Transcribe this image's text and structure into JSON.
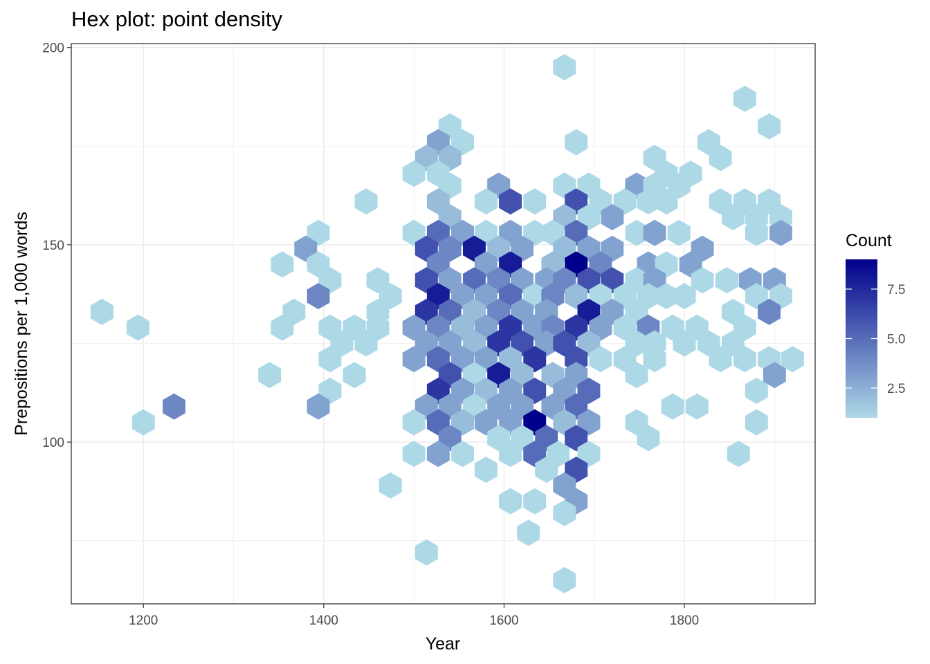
{
  "chart_data": {
    "type": "hexbin",
    "title": "Hex plot: point density",
    "xlabel": "Year",
    "ylabel": "Prepositions per 1,000 words",
    "xlim": [
      1120,
      1945
    ],
    "ylim": [
      59,
      201
    ],
    "x_ticks": [
      1200,
      1400,
      1600,
      1800
    ],
    "y_ticks": [
      100,
      150,
      200
    ],
    "grid": true,
    "legend": {
      "title": "Count",
      "placement": "right",
      "ticks": [
        2.5,
        5.0,
        7.5
      ],
      "tick_labels": [
        "2.5",
        "5.0",
        "7.5"
      ],
      "range": [
        1,
        9
      ],
      "low_color": "#add8e6",
      "high_color": "#00008b"
    },
    "hex_rows": [
      {
        "y": 195,
        "x": [
          1667
        ],
        "counts": [
          1
        ]
      },
      {
        "y": 187,
        "x": [
          1867
        ],
        "counts": [
          1
        ]
      },
      {
        "y": 180,
        "x": [
          1540,
          1894
        ],
        "counts": [
          1,
          1
        ]
      },
      {
        "y": 176,
        "x": [
          1527,
          1554,
          1680,
          1827
        ],
        "counts": [
          3,
          1,
          1,
          1
        ]
      },
      {
        "y": 172,
        "x": [
          1514,
          1540,
          1767,
          1840
        ],
        "counts": [
          2,
          2,
          1,
          1
        ]
      },
      {
        "y": 168,
        "x": [
          1500,
          1527,
          1780,
          1807
        ],
        "counts": [
          1,
          1,
          1,
          1
        ]
      },
      {
        "y": 165,
        "x": [
          1540,
          1594,
          1667,
          1694,
          1747,
          1767,
          1794
        ],
        "counts": [
          1,
          3,
          1,
          1,
          3,
          1,
          1
        ]
      },
      {
        "y": 161,
        "x": [
          1447,
          1527,
          1580,
          1607,
          1634,
          1680,
          1707,
          1734,
          1760,
          1780,
          1840,
          1867,
          1894
        ],
        "counts": [
          1,
          2,
          1,
          6,
          1,
          6,
          1,
          1,
          1,
          1,
          1,
          1,
          1
        ]
      },
      {
        "y": 157,
        "x": [
          1540,
          1667,
          1694,
          1720,
          1854,
          1880,
          1907
        ],
        "counts": [
          2,
          2,
          1,
          3,
          1,
          1,
          1
        ]
      },
      {
        "y": 153,
        "x": [
          1394,
          1500,
          1527,
          1554,
          1580,
          1607,
          1634,
          1654,
          1680,
          1747,
          1767,
          1794,
          1880,
          1907
        ],
        "counts": [
          1,
          1,
          5,
          3,
          1,
          3,
          1,
          1,
          5,
          1,
          3,
          1,
          1,
          3
        ]
      },
      {
        "y": 149,
        "x": [
          1380,
          1514,
          1540,
          1567,
          1594,
          1620,
          1667,
          1694,
          1720,
          1820
        ],
        "counts": [
          3,
          6,
          4,
          8,
          2,
          3,
          2,
          3,
          3,
          3
        ]
      },
      {
        "y": 145,
        "x": [
          1354,
          1394,
          1527,
          1580,
          1607,
          1654,
          1680,
          1707,
          1760,
          1780,
          1807
        ],
        "counts": [
          1,
          1,
          4,
          3,
          8,
          2,
          9,
          4,
          3,
          1,
          3
        ]
      },
      {
        "y": 141,
        "x": [
          1407,
          1460,
          1514,
          1540,
          1567,
          1594,
          1620,
          1647,
          1667,
          1694,
          1720,
          1747,
          1767,
          1820,
          1847,
          1873,
          1900
        ],
        "counts": [
          1,
          1,
          6,
          3,
          5,
          4,
          3,
          3,
          4,
          6,
          6,
          1,
          3,
          1,
          1,
          3,
          3
        ]
      },
      {
        "y": 137,
        "x": [
          1394,
          1474,
          1527,
          1554,
          1580,
          1607,
          1634,
          1654,
          1680,
          1707,
          1734,
          1760,
          1780,
          1800,
          1880,
          1907
        ],
        "counts": [
          4,
          1,
          8,
          3,
          3,
          5,
          1,
          4,
          2,
          1,
          1,
          1,
          1,
          1,
          1,
          1
        ]
      },
      {
        "y": 133,
        "x": [
          1154,
          1367,
          1460,
          1514,
          1540,
          1567,
          1594,
          1620,
          1647,
          1694,
          1720,
          1747,
          1854,
          1894
        ],
        "counts": [
          1,
          1,
          1,
          7,
          5,
          2,
          4,
          3,
          3,
          8,
          3,
          1,
          1,
          4
        ]
      },
      {
        "y": 129,
        "x": [
          1194,
          1354,
          1407,
          1434,
          1460,
          1500,
          1527,
          1554,
          1580,
          1607,
          1634,
          1654,
          1680,
          1707,
          1734,
          1760,
          1787,
          1814,
          1867
        ],
        "counts": [
          1,
          1,
          1,
          1,
          1,
          3,
          4,
          2,
          3,
          7,
          3,
          4,
          7,
          3,
          1,
          4,
          1,
          1,
          1
        ]
      },
      {
        "y": 125,
        "x": [
          1420,
          1447,
          1514,
          1540,
          1567,
          1594,
          1620,
          1647,
          1667,
          1694,
          1747,
          1767,
          1800,
          1827,
          1854
        ],
        "counts": [
          1,
          1,
          3,
          3,
          2,
          7,
          6,
          3,
          6,
          2,
          1,
          1,
          1,
          1,
          1
        ]
      },
      {
        "y": 121,
        "x": [
          1407,
          1500,
          1527,
          1554,
          1580,
          1607,
          1634,
          1680,
          1707,
          1734,
          1767,
          1840,
          1867,
          1894,
          1920
        ],
        "counts": [
          1,
          3,
          5,
          3,
          3,
          2,
          7,
          6,
          1,
          1,
          1,
          1,
          1,
          1,
          1
        ]
      },
      {
        "y": 117,
        "x": [
          1340,
          1434,
          1540,
          1567,
          1594,
          1620,
          1654,
          1680,
          1747,
          1900
        ],
        "counts": [
          1,
          1,
          6,
          1,
          8,
          2,
          2,
          3,
          1,
          3
        ]
      },
      {
        "y": 113,
        "x": [
          1407,
          1527,
          1554,
          1580,
          1607,
          1634,
          1667,
          1694,
          1880
        ],
        "counts": [
          1,
          7,
          3,
          2,
          3,
          6,
          3,
          5,
          1
        ]
      },
      {
        "y": 109,
        "x": [
          1234,
          1394,
          1514,
          1540,
          1567,
          1594,
          1620,
          1654,
          1680,
          1787,
          1814
        ],
        "counts": [
          4,
          3,
          3,
          3,
          1,
          3,
          3,
          3,
          5,
          1,
          1
        ]
      },
      {
        "y": 105,
        "x": [
          1200,
          1500,
          1527,
          1554,
          1580,
          1607,
          1634,
          1667,
          1694,
          1747,
          1880
        ],
        "counts": [
          1,
          1,
          5,
          2,
          3,
          3,
          9,
          2,
          3,
          1,
          1
        ]
      },
      {
        "y": 101,
        "x": [
          1540,
          1594,
          1620,
          1647,
          1680,
          1760
        ],
        "counts": [
          4,
          1,
          1,
          5,
          6,
          1
        ]
      },
      {
        "y": 97,
        "x": [
          1500,
          1527,
          1554,
          1607,
          1634,
          1660,
          1694,
          1860
        ],
        "counts": [
          1,
          3,
          1,
          1,
          5,
          1,
          1,
          1
        ]
      },
      {
        "y": 93,
        "x": [
          1580,
          1647,
          1680
        ],
        "counts": [
          1,
          1,
          6
        ]
      },
      {
        "y": 89,
        "x": [
          1474,
          1667
        ],
        "counts": [
          1,
          3
        ]
      },
      {
        "y": 85,
        "x": [
          1607,
          1634,
          1680
        ],
        "counts": [
          1,
          1,
          3
        ]
      },
      {
        "y": 82,
        "x": [
          1667
        ],
        "counts": [
          1
        ]
      },
      {
        "y": 77,
        "x": [
          1627
        ],
        "counts": [
          1
        ]
      },
      {
        "y": 72,
        "x": [
          1514
        ],
        "counts": [
          1
        ]
      },
      {
        "y": 65,
        "x": [
          1667
        ],
        "counts": [
          1
        ]
      }
    ]
  }
}
